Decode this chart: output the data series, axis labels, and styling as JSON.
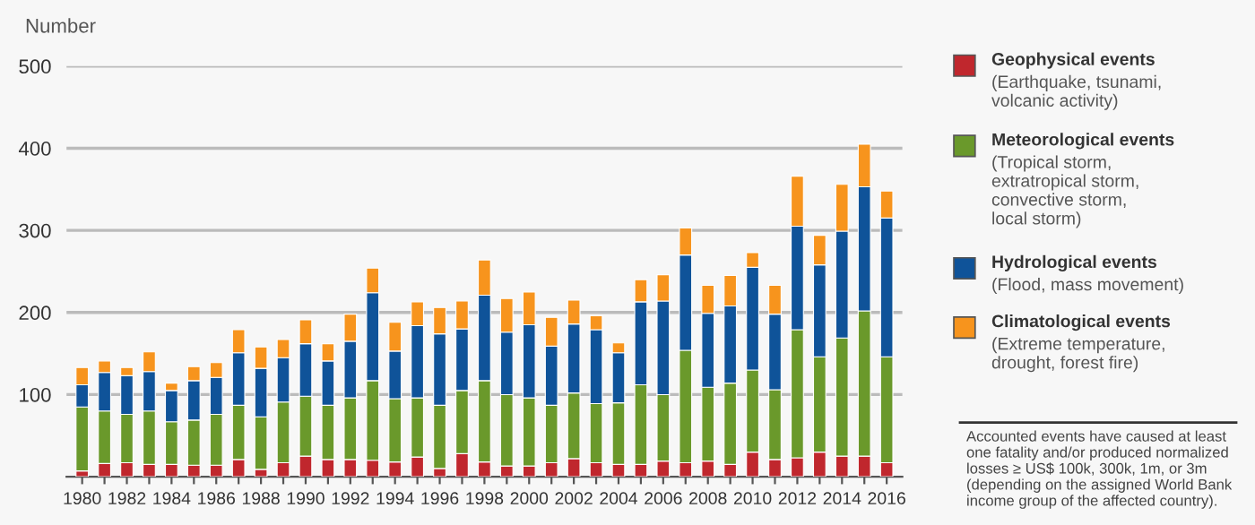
{
  "chart_data": {
    "type": "bar",
    "stacked": true,
    "ylabel": "Number",
    "categories": [
      "1980",
      null,
      "1982",
      null,
      "1984",
      null,
      "1986",
      null,
      "1988",
      null,
      "1990",
      null,
      "1992",
      null,
      "1994",
      null,
      "1996",
      null,
      "1998",
      null,
      "2000",
      null,
      "2002",
      null,
      "2004",
      null,
      "2006",
      null,
      "2008",
      null,
      "2010",
      null,
      "2012",
      null,
      "2014",
      null,
      "2016"
    ],
    "series": [
      {
        "name": "Geophysical events\n(Earthquake, tsunami,\nvolcanic activity)",
        "color": "#c0272d",
        "values": [
          7,
          16,
          17,
          15,
          15,
          14,
          14,
          21,
          9,
          17,
          25,
          21,
          21,
          20,
          18,
          24,
          10,
          28,
          18,
          13,
          13,
          17,
          22,
          17,
          15,
          15,
          19,
          17,
          19,
          15,
          30,
          21,
          23,
          30,
          25,
          25,
          17
        ]
      },
      {
        "name": "Meteorological events\n(Tropical storm,\nextratropical storm,\nconvective storm,\nlocal storm)",
        "color": "#6a992b",
        "values": [
          78,
          64,
          59,
          65,
          52,
          55,
          62,
          66,
          64,
          74,
          73,
          66,
          75,
          97,
          77,
          72,
          77,
          77,
          99,
          87,
          83,
          70,
          80,
          72,
          75,
          97,
          81,
          137,
          90,
          99,
          100,
          85,
          156,
          116,
          144,
          177,
          129
        ]
      },
      {
        "name": "Hydrological events\n(Flood, mass movement)",
        "color": "#0f5399",
        "values": [
          27,
          47,
          47,
          48,
          38,
          48,
          45,
          64,
          59,
          54,
          64,
          54,
          69,
          107,
          58,
          88,
          87,
          75,
          104,
          76,
          89,
          72,
          84,
          90,
          61,
          101,
          114,
          116,
          90,
          94,
          125,
          92,
          126,
          112,
          130,
          151,
          169
        ]
      },
      {
        "name": "Climatological events\n(Extreme temperature,\ndrought, forest fire)",
        "color": "#f7941d",
        "values": [
          21,
          14,
          10,
          24,
          9,
          17,
          18,
          28,
          26,
          22,
          29,
          21,
          33,
          30,
          35,
          29,
          32,
          34,
          43,
          41,
          40,
          35,
          29,
          17,
          12,
          27,
          32,
          33,
          34,
          37,
          18,
          35,
          61,
          36,
          57,
          52,
          33
        ]
      }
    ],
    "ylim": [
      0,
      500
    ],
    "yticks": [
      100,
      200,
      300,
      400,
      500
    ],
    "grid": "y",
    "legend": "right",
    "annotations": [
      "Accounted events have caused at least\none fatality and/or produced normalized\nlosses ≥ US$ 100k, 300k, 1m, or 3m\n(depending on the assigned World Bank\nincome group of the affected country)."
    ]
  }
}
